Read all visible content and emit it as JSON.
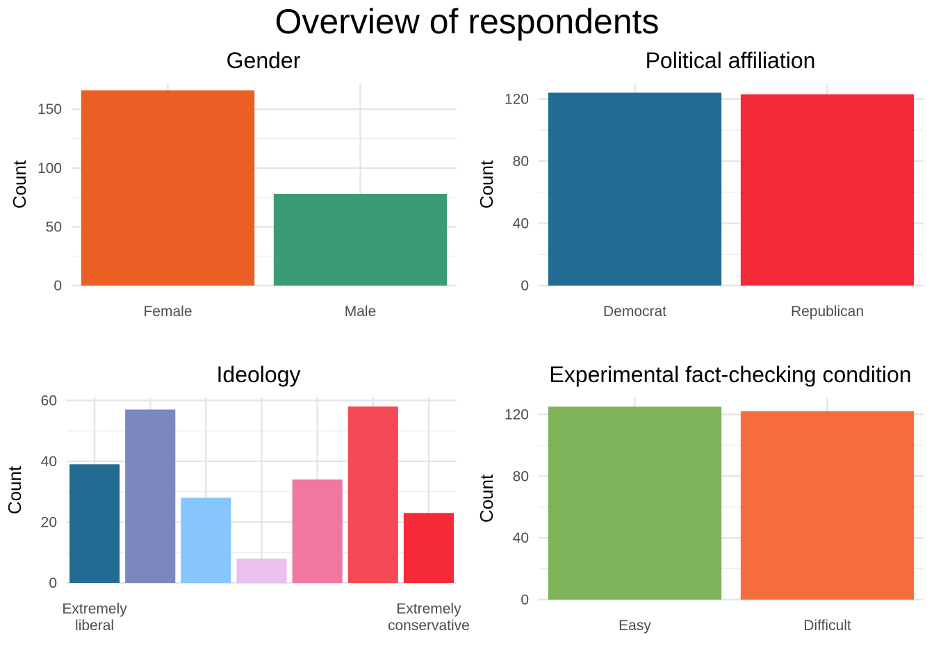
{
  "title": "Overview of respondents",
  "chart_data": [
    {
      "type": "bar",
      "title": "Gender",
      "ylabel": "Count",
      "xlabel": "",
      "categories": [
        "Female",
        "Male"
      ],
      "values": [
        166,
        78
      ],
      "colors": [
        "#EC5F24",
        "#3A9C77"
      ],
      "ylim": [
        0,
        172
      ],
      "yticks": [
        0,
        50,
        100,
        150
      ],
      "grid": true
    },
    {
      "type": "bar",
      "title": "Political affiliation",
      "ylabel": "Count",
      "xlabel": "",
      "categories": [
        "Democrat",
        "Republican"
      ],
      "values": [
        124,
        123
      ],
      "colors": [
        "#226B93",
        "#F52938"
      ],
      "ylim": [
        0,
        130
      ],
      "yticks": [
        0,
        40,
        80,
        120
      ],
      "grid": true
    },
    {
      "type": "bar",
      "title": "Ideology",
      "ylabel": "Count",
      "xlabel": "",
      "categories": [
        "Extremely\nliberal",
        "",
        "",
        "",
        "",
        "",
        "Extremely\nconservative"
      ],
      "values": [
        39,
        57,
        28,
        8,
        34,
        58,
        23
      ],
      "colors": [
        "#226B93",
        "#7A87C0",
        "#87C6FC",
        "#E9C0EE",
        "#F077A0",
        "#F54A55",
        "#F52938"
      ],
      "ylim": [
        0,
        61
      ],
      "yticks": [
        0,
        20,
        40,
        60
      ],
      "grid": true
    },
    {
      "type": "bar",
      "title": "Experimental fact-checking condition",
      "ylabel": "Count",
      "xlabel": "",
      "categories": [
        "Easy",
        "Difficult"
      ],
      "values": [
        125,
        122
      ],
      "colors": [
        "#7EB35A",
        "#F46D3A"
      ],
      "ylim": [
        0,
        131
      ],
      "yticks": [
        0,
        40,
        80,
        120
      ],
      "grid": true
    }
  ]
}
